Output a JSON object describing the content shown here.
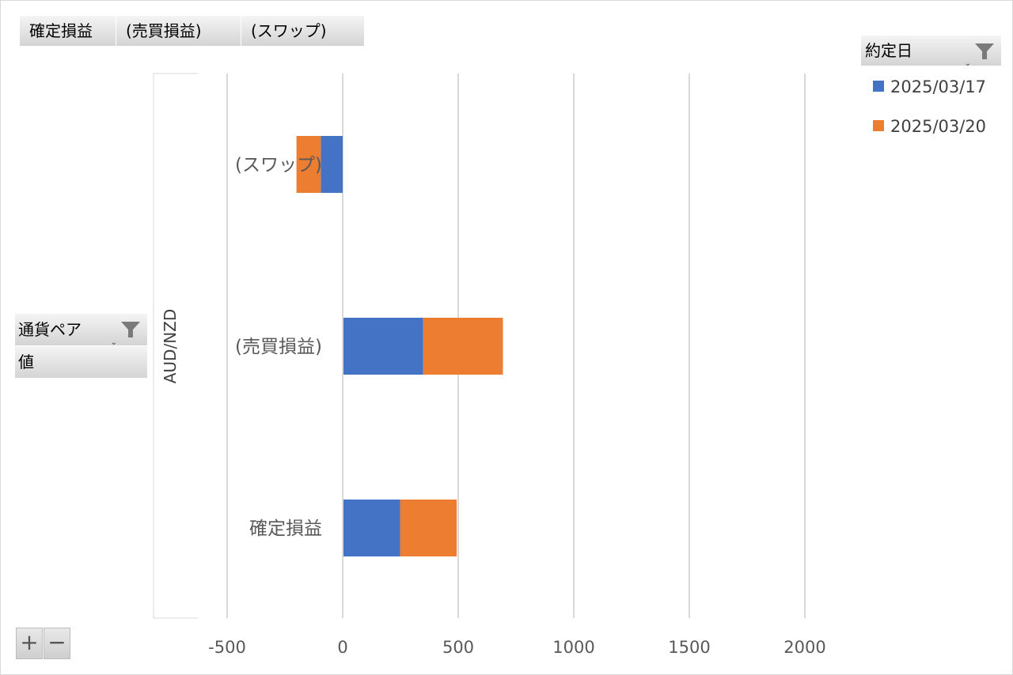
{
  "value_tabs": [
    "確定損益",
    "(売買損益)",
    "(スワップ)"
  ],
  "row_fields": {
    "currency_pair_label": "通貨ペア",
    "value_label": "値"
  },
  "legend": {
    "field_label": "約定日",
    "filter_icon": "filter-icon"
  },
  "buttons": {
    "expand": "+",
    "collapse": "−"
  },
  "chart_data": {
    "type": "bar",
    "orientation": "horizontal",
    "stacked": true,
    "group_label": "AUD/NZD",
    "categories": [
      "(スワップ)",
      "(売買損益)",
      "確定損益"
    ],
    "series": [
      {
        "name": "2025/03/17",
        "color": "#4472c4",
        "values": [
          -95,
          345,
          245
        ]
      },
      {
        "name": "2025/03/20",
        "color": "#ed7d31",
        "values": [
          -105,
          345,
          245
        ]
      }
    ],
    "xlim": [
      -500,
      2000
    ],
    "xticks": [
      "-500",
      "0",
      "500",
      "1000",
      "1500",
      "2000"
    ],
    "tick_values": [
      -500,
      0,
      500,
      1000,
      1500,
      2000
    ],
    "grid": true,
    "legend_position": "top-right"
  }
}
